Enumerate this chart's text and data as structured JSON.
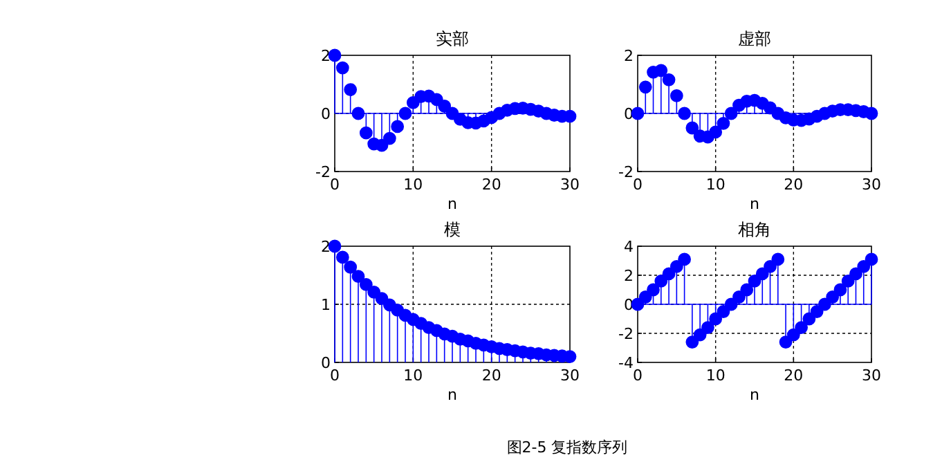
{
  "chart_data": [
    {
      "type": "lollipop",
      "title": "实部",
      "xlabel": "n",
      "color": "#0000ff",
      "marker": "circle",
      "grid": true,
      "x": [
        0,
        1,
        2,
        3,
        4,
        5,
        6,
        7,
        8,
        9,
        10,
        11,
        12,
        13,
        14,
        15,
        16,
        17,
        18,
        19,
        20,
        21,
        22,
        23,
        24,
        25,
        26,
        27,
        28,
        29,
        30
      ],
      "values": [
        2.0,
        1.57,
        0.82,
        0,
        -0.67,
        -1.05,
        -1.1,
        -0.86,
        -0.45,
        0,
        0.37,
        0.58,
        0.6,
        0.48,
        0.25,
        0,
        -0.2,
        -0.32,
        -0.33,
        -0.26,
        -0.14,
        0,
        0.11,
        0.17,
        0.18,
        0.14,
        0.08,
        0,
        -0.06,
        -0.1,
        -0.1
      ],
      "xlim": [
        0,
        30
      ],
      "xticks": [
        0,
        10,
        20,
        30
      ],
      "ylim": [
        -2,
        2
      ],
      "yticks": [
        -2,
        0,
        2
      ],
      "ref_lines": [
        {
          "axis": "y",
          "value": 0,
          "color": "#0000ff"
        }
      ],
      "annotations": [
        "图2-5 复指数序列"
      ]
    },
    {
      "type": "lollipop",
      "title": "虚部",
      "xlabel": "n",
      "color": "#0000ff",
      "marker": "circle",
      "grid": true,
      "x": [
        0,
        1,
        2,
        3,
        4,
        5,
        6,
        7,
        8,
        9,
        10,
        11,
        12,
        13,
        14,
        15,
        16,
        17,
        18,
        19,
        20,
        21,
        22,
        23,
        24,
        25,
        26,
        27,
        28,
        29,
        30
      ],
      "values": [
        0,
        0.91,
        1.42,
        1.48,
        1.16,
        0.61,
        0,
        -0.5,
        -0.78,
        -0.81,
        -0.64,
        -0.34,
        0,
        0.28,
        0.42,
        0.45,
        0.35,
        0.19,
        0,
        -0.15,
        -0.23,
        -0.24,
        -0.19,
        -0.1,
        0,
        0.08,
        0.13,
        0.13,
        0.1,
        0.06,
        0
      ],
      "xlim": [
        0,
        30
      ],
      "xticks": [
        0,
        10,
        20,
        30
      ],
      "ylim": [
        -2,
        2
      ],
      "yticks": [
        -2,
        0,
        2
      ],
      "ref_lines": [
        {
          "axis": "y",
          "value": 0,
          "color": "#0000ff"
        }
      ]
    },
    {
      "type": "lollipop",
      "title": "模",
      "xlabel": "n",
      "color": "#0000ff",
      "marker": "circle",
      "grid": true,
      "x": [
        0,
        1,
        2,
        3,
        4,
        5,
        6,
        7,
        8,
        9,
        10,
        11,
        12,
        13,
        14,
        15,
        16,
        17,
        18,
        19,
        20,
        21,
        22,
        23,
        24,
        25,
        26,
        27,
        28,
        29,
        30
      ],
      "values": [
        2.0,
        1.81,
        1.64,
        1.48,
        1.34,
        1.21,
        1.1,
        0.99,
        0.9,
        0.81,
        0.74,
        0.67,
        0.6,
        0.55,
        0.49,
        0.45,
        0.4,
        0.37,
        0.33,
        0.3,
        0.27,
        0.24,
        0.22,
        0.2,
        0.18,
        0.16,
        0.15,
        0.13,
        0.12,
        0.11,
        0.1
      ],
      "xlim": [
        0,
        30
      ],
      "xticks": [
        0,
        10,
        20,
        30
      ],
      "ylim": [
        0,
        2
      ],
      "yticks": [
        0,
        1,
        2
      ]
    },
    {
      "type": "lollipop",
      "title": "相角",
      "xlabel": "n",
      "color": "#0000ff",
      "marker": "circle",
      "grid": true,
      "x": [
        0,
        1,
        2,
        3,
        4,
        5,
        6,
        7,
        8,
        9,
        10,
        11,
        12,
        13,
        14,
        15,
        16,
        17,
        18,
        19,
        20,
        21,
        22,
        23,
        24,
        25,
        26,
        27,
        28,
        29,
        30
      ],
      "values": [
        0,
        0.5,
        1.0,
        1.6,
        2.1,
        2.6,
        3.1,
        -2.6,
        -2.1,
        -1.6,
        -1.0,
        -0.5,
        0,
        0.5,
        1.0,
        1.6,
        2.1,
        2.6,
        3.1,
        -2.6,
        -2.1,
        -1.6,
        -1.0,
        -0.5,
        0,
        0.5,
        1.0,
        1.6,
        2.1,
        2.6,
        3.1
      ],
      "ref_lines": [
        {
          "axis": "y",
          "value": 0,
          "color": "#0000ff"
        }
      ],
      "xlim": [
        0,
        30
      ],
      "xticks": [
        0,
        10,
        20,
        30
      ],
      "ylim": [
        -4,
        4
      ],
      "yticks": [
        -4,
        -2,
        0,
        2,
        4
      ]
    }
  ]
}
